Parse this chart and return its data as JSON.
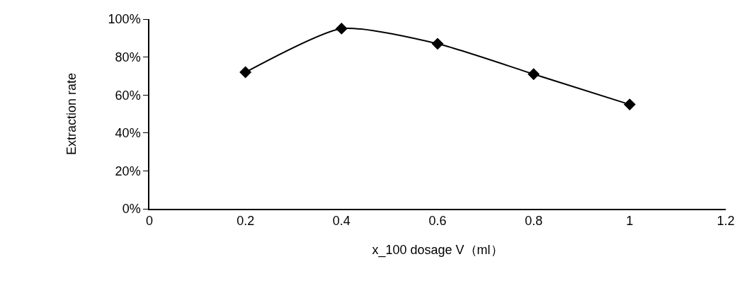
{
  "chart_data": {
    "type": "line",
    "xlabel": "x_100 dosage V（ml）",
    "ylabel": "Extraction rate",
    "x": [
      0.2,
      0.4,
      0.6,
      0.8,
      1
    ],
    "series": [
      {
        "color": "#000000",
        "values": [
          72,
          95,
          87,
          71,
          55
        ]
      }
    ],
    "xlim": [
      0,
      1.2
    ],
    "xticks": [
      0,
      0.2,
      0.4,
      0.6,
      0.8,
      1,
      1.2
    ],
    "ylim": [
      0,
      100
    ],
    "yticks": [
      {
        "value": 0,
        "label": "0%"
      },
      {
        "value": 20,
        "label": "20%"
      },
      {
        "value": 40,
        "label": "40%"
      },
      {
        "value": 60,
        "label": "60%"
      },
      {
        "value": 80,
        "label": "80%"
      },
      {
        "value": 100,
        "label": "100%"
      }
    ],
    "grid": false,
    "marker": "diamond",
    "line_style": "solid"
  }
}
